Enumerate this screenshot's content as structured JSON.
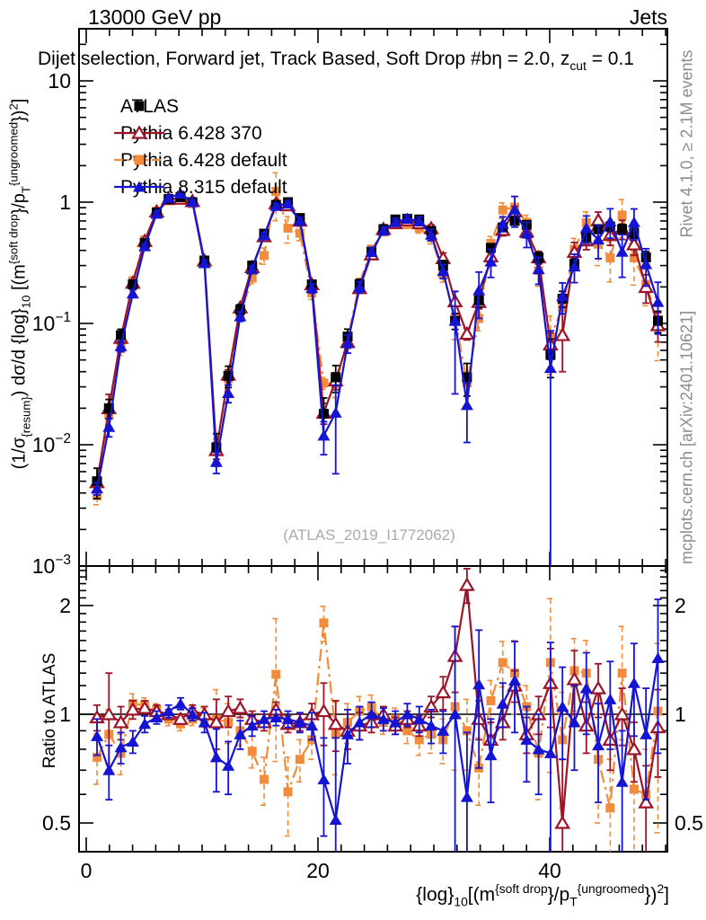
{
  "header": {
    "left_label": "13000 GeV pp",
    "right_label": "Jets"
  },
  "plot_title": {
    "text": "Dijet selection, Forward jet, Track Based, Soft Drop #bη = 2.0, z_cut = 0.1",
    "segments": [
      {
        "t": "Dijet selection, Forward jet, Track Based, Soft Drop #bη = 2.0, z"
      },
      {
        "t": "cut",
        "s": "sub"
      },
      {
        "t": " = 0.1"
      }
    ]
  },
  "watermark": "(ATLAS_2019_I1772062)",
  "side_notes": {
    "rivet": "Rivet 4.1.0, ≥ 2.1M events",
    "mcplots": "mcplots.cern.ch [arXiv:2401.10621]"
  },
  "ratio_axis_title": "Ratio to ATLAS",
  "axis_titles": {
    "y_segments": [
      {
        "t": "(1/σ"
      },
      {
        "t": "{resum}",
        "s": "sub"
      },
      {
        "t": ") dσ/d {log}"
      },
      {
        "t": "10",
        "s": "sub"
      },
      {
        "t": " [(m"
      },
      {
        "t": "{soft drop",
        "s": "sup"
      },
      {
        "t": "}/p"
      },
      {
        "t": "T",
        "s": "sub"
      },
      {
        "t": "{ungroomed",
        "s": "sup"
      },
      {
        "t": "})"
      },
      {
        "t": "2",
        "s": "sup"
      },
      {
        "t": "]"
      }
    ],
    "x_segments": [
      {
        "t": "{log}"
      },
      {
        "t": "10",
        "s": "sub"
      },
      {
        "t": "[(m"
      },
      {
        "t": "{soft drop",
        "s": "sup"
      },
      {
        "t": "}/p"
      },
      {
        "t": "T",
        "s": "sub"
      },
      {
        "t": "{ungroomed",
        "s": "sup"
      },
      {
        "t": "})"
      },
      {
        "t": "2",
        "s": "sup"
      },
      {
        "t": "]"
      }
    ]
  },
  "legend": {
    "items": [
      {
        "label": "ATLAS",
        "series": "atlas"
      },
      {
        "label": "Pythia 6.428 370",
        "series": "py6_370"
      },
      {
        "label": "Pythia 6.428 default",
        "series": "py6_def"
      },
      {
        "label": "Pythia 8.315 default",
        "series": "py8_def"
      }
    ]
  },
  "colors": {
    "atlas": "#000000",
    "py6_370": "#9b1428",
    "py6_def": "#f08c3c",
    "py8_def": "#1414d2",
    "frame": "#000000",
    "gray_text": "#8c8c8c",
    "watermark": "#aaaaaa"
  },
  "chart_data": {
    "type": "line",
    "title": "Dijet selection, Forward jet, Track Based, Soft Drop #bη = 2.0, z_cut = 0.1",
    "xlabel": "{log}_10[(m^{soft drop}/p_T^{ungroomed})^2]",
    "ylabel": "(1/σ_{resum}) dσ/d {log}_10[(m^{soft drop}/p_T^{ungroomed})^2]",
    "ratio_ylabel": "Ratio to ATLAS",
    "legend_position": "top-left-inside",
    "grid": false,
    "x_axis": {
      "range": [
        -0.62,
        50.15
      ],
      "major_ticks": [
        0,
        20,
        40
      ],
      "minor_step": 2
    },
    "y_axis_main": {
      "scale": "log",
      "range": [
        0.001,
        26.9
      ],
      "ticks": [
        {
          "v": 10,
          "base": "10",
          "exp": null
        },
        {
          "v": 1,
          "base": "1",
          "exp": null
        },
        {
          "v": 0.1,
          "base": "10",
          "exp": "−1"
        },
        {
          "v": 0.01,
          "base": "10",
          "exp": "−2"
        },
        {
          "v": 0.001,
          "base": "10",
          "exp": "−3"
        }
      ]
    },
    "y_axis_ratio": {
      "scale": "log",
      "range": [
        0.42,
        2.57
      ],
      "ticks": [
        {
          "v": 2,
          "label": "2"
        },
        {
          "v": 1,
          "label": "1"
        },
        {
          "v": 0.5,
          "label": "0.5"
        }
      ]
    },
    "x": [
      0.93,
      1.96,
      2.99,
      4.02,
      5.05,
      6.08,
      7.11,
      8.14,
      9.17,
      10.2,
      11.23,
      12.26,
      13.29,
      14.32,
      15.35,
      16.38,
      17.41,
      18.44,
      19.47,
      20.5,
      21.53,
      22.56,
      23.59,
      24.62,
      25.65,
      26.68,
      27.71,
      28.74,
      29.77,
      30.8,
      31.83,
      32.86,
      33.89,
      34.92,
      35.95,
      36.98,
      38.01,
      39.04,
      40.07,
      41.1,
      42.13,
      43.16,
      44.19,
      45.22,
      46.25,
      47.28,
      48.31,
      49.34
    ],
    "series": [
      {
        "id": "atlas",
        "name": "ATLAS",
        "color": "#000000",
        "marker": "square",
        "fill": true,
        "line": "none",
        "values": [
          0.005,
          0.02,
          0.08,
          0.21,
          0.46,
          0.82,
          1.06,
          1.1,
          1.0,
          0.33,
          0.0095,
          0.037,
          0.13,
          0.3,
          0.55,
          0.95,
          1.0,
          0.74,
          0.21,
          0.018,
          0.036,
          0.078,
          0.21,
          0.39,
          0.6,
          0.72,
          0.73,
          0.72,
          0.58,
          0.3,
          0.105,
          0.036,
          0.155,
          0.42,
          0.62,
          0.7,
          0.65,
          0.35,
          0.055,
          0.16,
          0.31,
          0.52,
          0.6,
          0.63,
          0.6,
          0.56,
          0.35,
          0.105
        ],
        "frac_err": [
          0.28,
          0.18,
          0.12,
          0.08,
          0.06,
          0.05,
          0.04,
          0.04,
          0.04,
          0.07,
          0.3,
          0.2,
          0.1,
          0.08,
          0.06,
          0.05,
          0.04,
          0.05,
          0.08,
          0.35,
          0.25,
          0.15,
          0.1,
          0.08,
          0.06,
          0.06,
          0.06,
          0.06,
          0.07,
          0.1,
          0.15,
          0.3,
          0.12,
          0.08,
          0.07,
          0.07,
          0.07,
          0.1,
          0.35,
          0.15,
          0.1,
          0.09,
          0.08,
          0.08,
          0.09,
          0.1,
          0.12,
          0.2
        ]
      },
      {
        "id": "py6_370",
        "name": "Pythia 6.428 370",
        "color": "#9b1428",
        "marker": "triangle",
        "fill": false,
        "line": "solid",
        "ratio_to_atlas": [
          0.98,
          1.0,
          0.95,
          1.03,
          1.04,
          1.02,
          1.0,
          0.97,
          1.02,
          1.0,
          0.95,
          1.02,
          1.04,
          0.97,
          0.95,
          1.03,
          0.94,
          0.95,
          1.0,
          1.02,
          0.94,
          0.9,
          0.93,
          0.95,
          1.0,
          0.93,
          0.97,
          0.93,
          1.05,
          1.15,
          1.45,
          2.28,
          0.97,
          0.85,
          0.95,
          1.2,
          0.88,
          1.0,
          1.22,
          0.5,
          1.25,
          0.93,
          1.18,
          0.85,
          1.0,
          0.8,
          0.57,
          0.92
        ],
        "ratio_err": [
          0.08,
          0.3,
          0.1,
          0.06,
          0.05,
          0.04,
          0.03,
          0.03,
          0.04,
          0.05,
          0.15,
          0.1,
          0.06,
          0.05,
          0.05,
          0.05,
          0.05,
          0.05,
          0.07,
          0.2,
          0.15,
          0.1,
          0.08,
          0.06,
          0.05,
          0.05,
          0.05,
          0.06,
          0.07,
          0.12,
          0.3,
          0.25,
          0.12,
          0.1,
          0.1,
          0.12,
          0.1,
          0.12,
          0.3,
          0.25,
          0.25,
          0.15,
          0.2,
          0.15,
          0.18,
          0.15,
          0.15,
          0.25
        ]
      },
      {
        "id": "py6_def",
        "name": "Pythia 6.428 default",
        "color": "#f08c3c",
        "marker": "square",
        "fill": true,
        "line": "dashdot",
        "ratio_to_atlas": [
          0.76,
          0.88,
          0.78,
          1.07,
          1.06,
          1.03,
          0.97,
          0.94,
          0.97,
          0.98,
          0.97,
          0.95,
          0.9,
          0.79,
          0.66,
          1.29,
          0.61,
          0.75,
          0.85,
          1.79,
          0.88,
          0.95,
          1.02,
          1.05,
          0.95,
          0.97,
          0.9,
          0.85,
          0.88,
          0.85,
          1.05,
          0.9,
          0.71,
          1.09,
          1.39,
          1.3,
          1.05,
          0.78,
          1.39,
          0.85,
          1.32,
          1.3,
          0.75,
          0.55,
          1.3,
          0.62,
          0.6,
          1.02
        ],
        "ratio_err": [
          0.12,
          0.15,
          0.1,
          0.07,
          0.05,
          0.04,
          0.04,
          0.04,
          0.04,
          0.06,
          0.2,
          0.12,
          0.08,
          0.08,
          0.1,
          0.55,
          0.15,
          0.1,
          0.1,
          0.2,
          0.2,
          0.12,
          0.1,
          0.08,
          0.07,
          0.07,
          0.07,
          0.08,
          0.1,
          0.12,
          0.35,
          0.2,
          0.15,
          0.15,
          0.2,
          0.3,
          0.15,
          0.2,
          0.7,
          0.3,
          0.3,
          0.3,
          0.25,
          0.2,
          0.45,
          0.25,
          0.2,
          0.55
        ]
      },
      {
        "id": "py8_def",
        "name": "Pythia 8.315 default",
        "color": "#1414d2",
        "marker": "triangle",
        "fill": true,
        "line": "solid",
        "ratio_to_atlas": [
          0.87,
          0.7,
          0.81,
          0.84,
          0.94,
          0.98,
          1.02,
          1.07,
          1.0,
          0.95,
          0.76,
          0.72,
          0.88,
          0.93,
          0.97,
          0.98,
          0.97,
          0.95,
          0.93,
          0.66,
          0.51,
          0.88,
          0.95,
          1.0,
          0.97,
          0.95,
          1.0,
          0.97,
          0.93,
          0.9,
          1.0,
          0.59,
          1.21,
          0.77,
          1.07,
          1.24,
          0.85,
          0.8,
          0.78,
          1.05,
          0.95,
          1.18,
          0.82,
          1.1,
          0.65,
          1.22,
          0.88,
          1.43
        ],
        "ratio_err": [
          0.1,
          0.12,
          0.08,
          0.06,
          0.05,
          0.04,
          0.04,
          0.04,
          0.04,
          0.06,
          0.15,
          0.12,
          0.08,
          0.06,
          0.05,
          0.05,
          0.05,
          0.06,
          0.08,
          0.2,
          0.35,
          0.15,
          0.1,
          0.08,
          0.07,
          0.07,
          0.07,
          0.08,
          0.1,
          0.12,
          0.75,
          0.3,
          0.5,
          0.2,
          0.15,
          0.35,
          0.2,
          0.2,
          0.8,
          0.3,
          0.25,
          0.3,
          0.25,
          0.3,
          0.25,
          0.35,
          0.3,
          0.65
        ]
      }
    ]
  }
}
